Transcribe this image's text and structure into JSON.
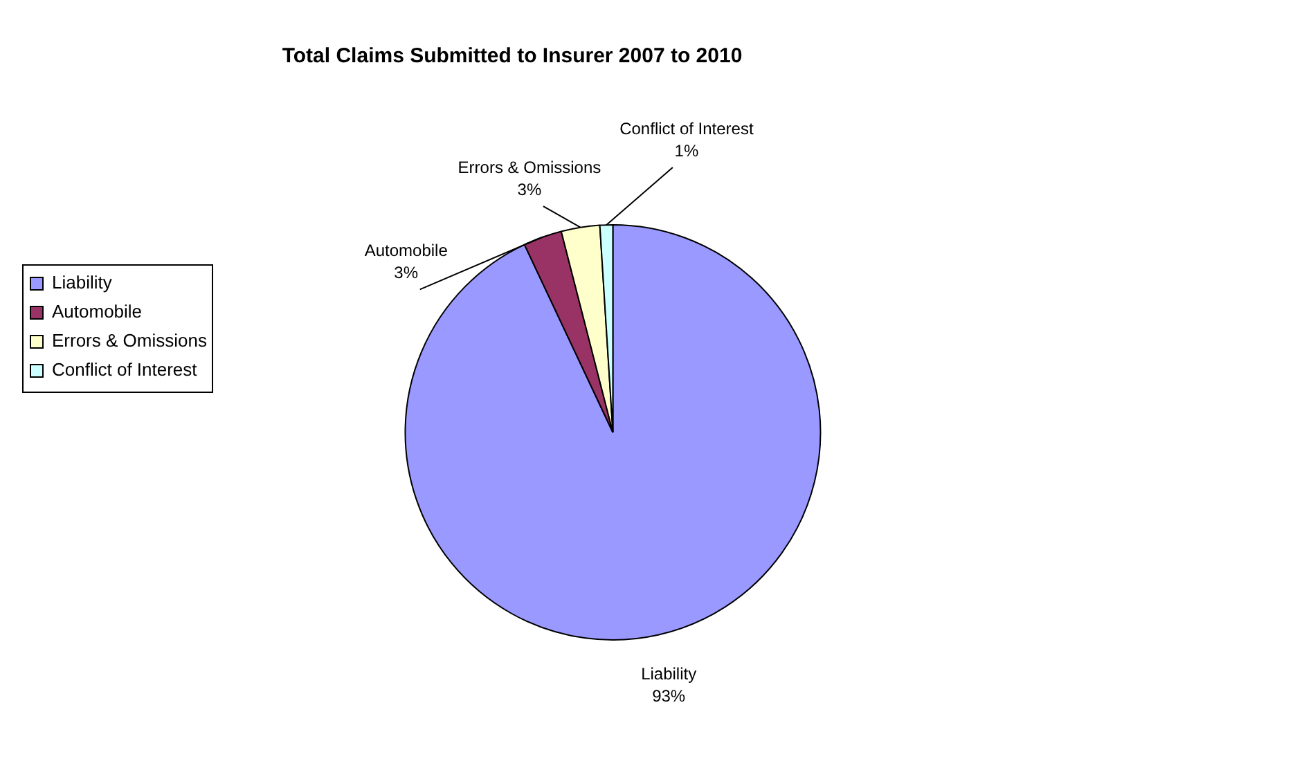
{
  "chart_data": {
    "type": "pie",
    "title": "Total Claims Submitted to Insurer 2007 to 2010",
    "categories": [
      "Liability",
      "Automobile",
      "Errors & Omissions",
      "Conflict of Interest"
    ],
    "values": [
      93,
      3,
      3,
      1
    ],
    "colors": [
      "#9999ff",
      "#993366",
      "#ffffcc",
      "#ccffff"
    ],
    "value_labels": [
      "93%",
      "3%",
      "3%",
      "1%"
    ],
    "legend": "left"
  }
}
